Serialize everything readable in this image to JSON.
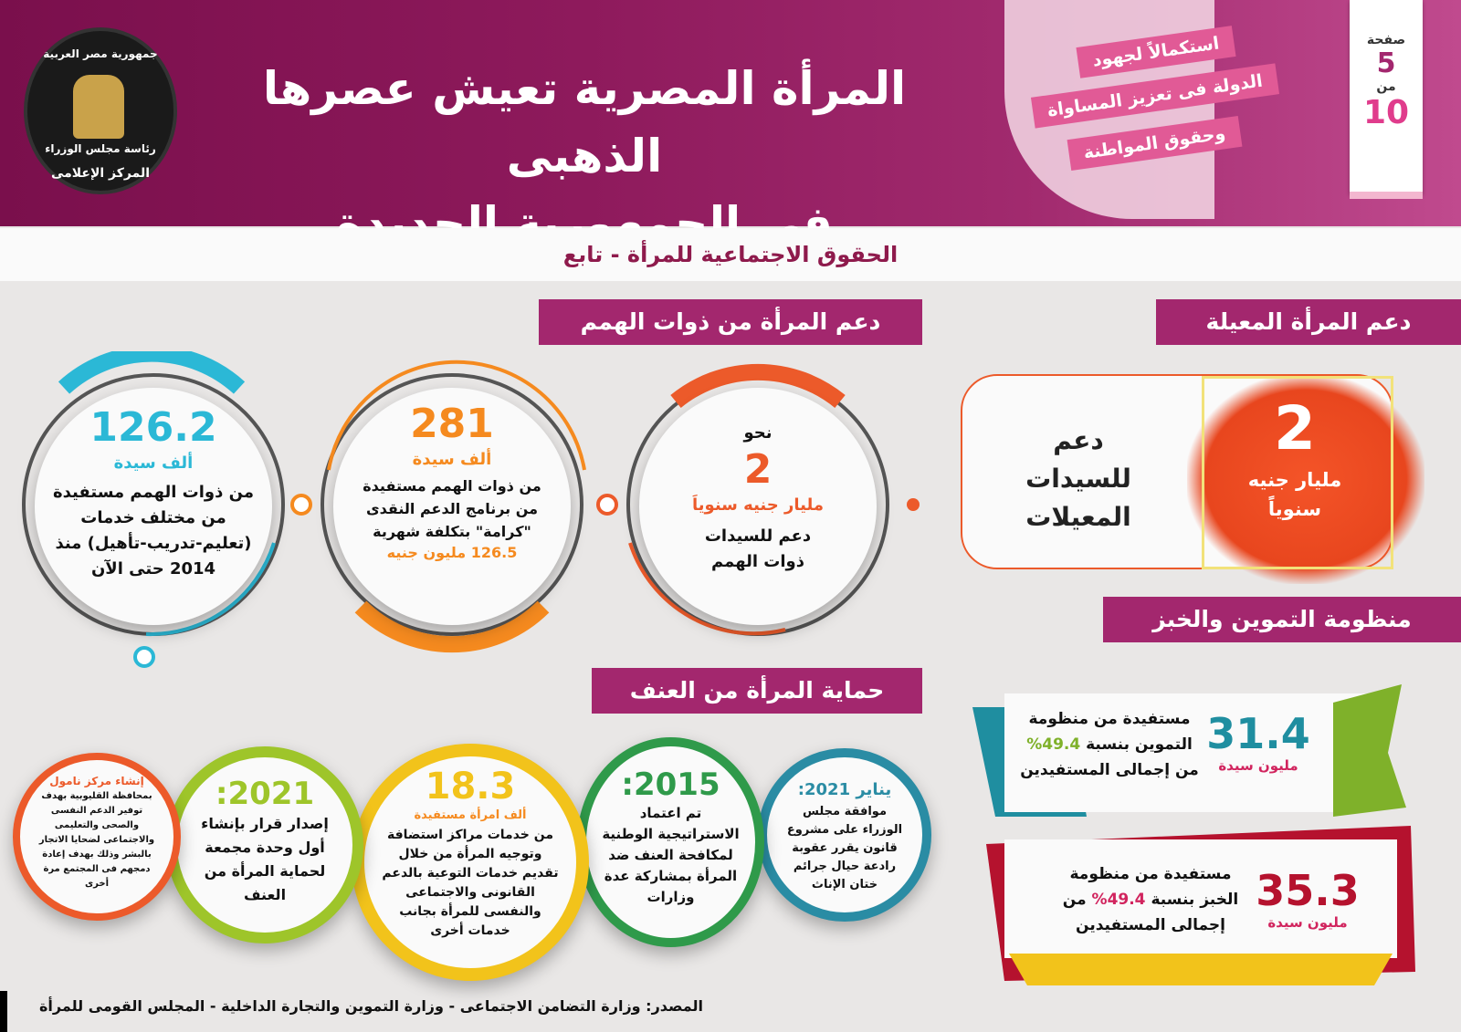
{
  "logo": {
    "line1": "جمهورية مصر العربية",
    "line2": "رئاسة مجلس الوزراء",
    "line3": "المركز الإعلامى"
  },
  "header": {
    "title_line1": "المرأة المصرية تعيش عصرها الذهبى",
    "title_line2": "فى الجمهورية الجديدة",
    "ribbon1": "استكمالاً لجهود",
    "ribbon2": "الدولة فى تعزيز المساواة",
    "ribbon3": "وحقوق المواطنة"
  },
  "page": {
    "page_label": "صفحة",
    "current": "5",
    "of_label": "من",
    "total": "10"
  },
  "subtitle": "الحقوق الاجتماعية للمرأة - تابع",
  "section_disabled": {
    "title": "دعم المرأة من ذوات الهمم",
    "c1": {
      "top": "نحو",
      "number": "2",
      "unit": "مليار جنيه سنوياَ",
      "text": "دعم للسيدات ذوات الهمم"
    },
    "c2": {
      "number": "281",
      "unit": "ألف سيدة",
      "text": "من ذوات الهمم مستفيدة من برنامج الدعم النقدى \"كرامة\" بتكلفة شهرية",
      "amount": "126.5",
      "amount_unit": "مليون جنيه"
    },
    "c3": {
      "number": "126.2",
      "unit": "ألف سيدة",
      "text": "من ذوات الهمم مستفيدة من مختلف خدمات (تعليم-تدريب-تأهيل) منذ 2014 حتى الآن"
    }
  },
  "section_breadwinner": {
    "title": "دعم المرأة المعيلة",
    "number": "2",
    "unit": "مليار جنيه سنوياً",
    "text": "دعم للسيدات المعيلات"
  },
  "section_supply": {
    "title": "منظومة التموين والخبز",
    "s1": {
      "number": "31.4",
      "unit": "مليون سيدة",
      "text_a": "مستفيدة من منظومة",
      "text_b": "التموين بنسبة",
      "pct": "49.4%",
      "text_c": "من إجمالى المستفيدين"
    },
    "s2": {
      "number": "35.3",
      "unit": "مليون سيدة",
      "text_a": "مستفيدة من منظومة",
      "text_b": "الخبز بنسبة",
      "pct": "49.4%",
      "text_b2": "من",
      "text_c": "إجمالى المستفيدين"
    }
  },
  "section_violence": {
    "title": "حماية المرأة من العنف",
    "v1": {
      "head": "يناير 2021:",
      "text": "موافقة مجلس الوزراء على مشروع قانون يقرر عقوبة رادعة حيال جرائم ختان الإناث"
    },
    "v2": {
      "head": "2015:",
      "text": "تم اعتماد الاستراتيجية الوطنية لمكافحة العنف ضد المرأة بمشاركة عدة وزارات"
    },
    "v3": {
      "head": "18.3",
      "unit": "ألف امرأة مستفيدة",
      "text": "من خدمات مراكز استضافة وتوجيه المرأة من خلال تقديم خدمات التوعية بالدعم القانونى والاجتماعى والنفسى للمرأة بجانب خدمات أخرى"
    },
    "v4": {
      "head": "2021:",
      "text": "إصدار قرار بإنشاء أول وحدة مجمعة لحماية المرأة من العنف"
    },
    "v5": {
      "head": "إنشاء مركز نامول",
      "text": "بمحافظة القليوبية بهدف توفير الدعم النفسى والصحى والتعليمى والاجتماعى لضحايا الاتجار بالبشر وذلك بهدف إعادة دمجهم فى المجتمع مرة أخرى"
    }
  },
  "source": "المصدر: وزارة التضامن الاجتماعى - وزارة التموين والتجارة الداخلية - المجلس القومى للمرأة",
  "colors": {
    "header": "#8e1a5c",
    "tag": "#a3276e",
    "cyan": "#2bb8d6",
    "orange": "#f58a1f",
    "red": "#ec5a2a",
    "green": "#2f9a4a",
    "yellow": "#f2c31b",
    "lime": "#9ec52a",
    "magenta": "#d1245e",
    "darkred": "#b5122e"
  }
}
